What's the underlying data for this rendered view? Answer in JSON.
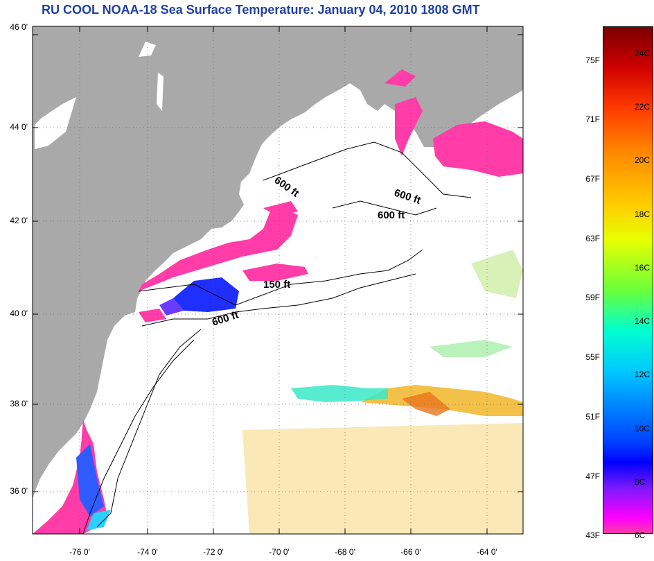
{
  "title": "RU COOL  NOAA-18  Sea Surface Temperature:  January 04, 2010 1808 GMT",
  "latitude_labels": [
    "46 0'",
    "44 0'",
    "42 0'",
    "40 0'",
    "38 0'",
    "36 0'"
  ],
  "longitude_labels": [
    "-76 0'",
    "-74 0'",
    "-72 0'",
    "-70 0'",
    "-68 0'",
    "-66 0'",
    "-64 0'"
  ],
  "contour_labels": [
    "600 ft",
    "600 ft",
    "600 ft",
    "150 ft",
    "600 ft"
  ],
  "colorbar": {
    "fahrenheit": [
      "75F",
      "71F",
      "67F",
      "63F",
      "59F",
      "55F",
      "51F",
      "47F",
      "43F"
    ],
    "celsius": [
      "24C",
      "22C",
      "20C",
      "18C",
      "16C",
      "14C",
      "12C",
      "10C",
      "8C",
      "6C"
    ]
  },
  "colors": {
    "land": "#a9a9a9",
    "title": "#1f3fa6",
    "cold": "#ff3ca8"
  }
}
